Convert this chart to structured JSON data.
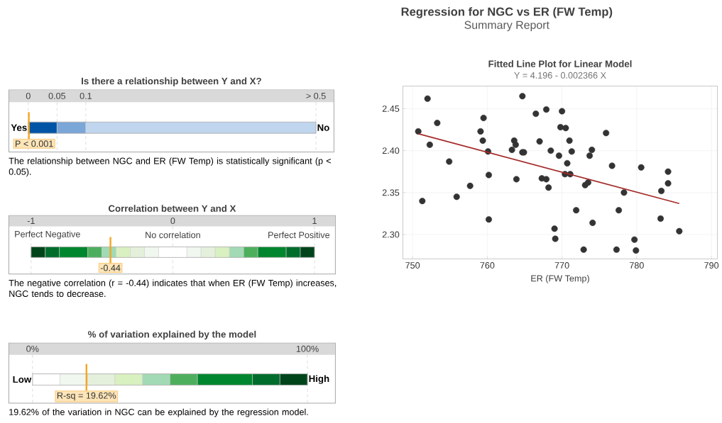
{
  "chart_data": [
    {
      "type": "other",
      "title": "Regression for NGC vs ER (FW Temp)",
      "subtitle": "Summary Report"
    },
    {
      "type": "bar",
      "orientation": "horizontal",
      "title": "Is there a relationship between Y and X?",
      "categories": [
        null
      ],
      "xlim": [
        0,
        0.5
      ],
      "xticks": [
        0,
        0.05,
        0.1,
        {
          "value": 0.5,
          "label": "> 0.5"
        }
      ],
      "series": [
        {
          "color": "#0054a6",
          "base": [
            0
          ],
          "values": [
            0.05
          ]
        },
        {
          "color": "#7aa6d8",
          "base": [
            0.05
          ],
          "values": [
            0.05
          ]
        },
        {
          "color": "#c0d5ee",
          "base": [
            0.1
          ],
          "values": [
            0.4
          ]
        }
      ],
      "ref_lines": [
        {
          "axis": "x",
          "value": 0.001,
          "label": "P < 0.001",
          "color": "#f5a623"
        }
      ],
      "annotations": [
        "Yes",
        "No",
        "The relationship between NGC and ER (FW Temp) is statistically significant (p < 0.05)."
      ]
    },
    {
      "type": "bar",
      "orientation": "horizontal",
      "title": "Correlation between Y and X",
      "categories": [
        null
      ],
      "xlim": [
        -1,
        1
      ],
      "xticks": [
        -1,
        0,
        1
      ],
      "series": [
        {
          "color": "#00441b",
          "base": [
            -1
          ],
          "values": [
            0.1
          ]
        },
        {
          "color": "#006d2c",
          "base": [
            -0.9
          ],
          "values": [
            0.1
          ]
        },
        {
          "color": "#00862e",
          "base": [
            -0.8
          ],
          "values": [
            0.2
          ]
        },
        {
          "color": "#4daf5e",
          "base": [
            -0.6
          ],
          "values": [
            0.1
          ]
        },
        {
          "color": "#a1dab4",
          "base": [
            -0.5
          ],
          "values": [
            0.1
          ]
        },
        {
          "color": "#d9f0c0",
          "base": [
            -0.4
          ],
          "values": [
            0.1
          ]
        },
        {
          "color": "#e5f0dc",
          "base": [
            -0.3
          ],
          "values": [
            0.1
          ]
        },
        {
          "color": "#f0f7ee",
          "base": [
            -0.2
          ],
          "values": [
            0.1
          ]
        },
        {
          "color": "#ffffff",
          "base": [
            -0.1
          ],
          "values": [
            0.2
          ]
        },
        {
          "color": "#f0f7ee",
          "base": [
            0.1
          ],
          "values": [
            0.1
          ]
        },
        {
          "color": "#e5f0dc",
          "base": [
            0.2
          ],
          "values": [
            0.1
          ]
        },
        {
          "color": "#d9f0c0",
          "base": [
            0.3
          ],
          "values": [
            0.1
          ]
        },
        {
          "color": "#a1dab4",
          "base": [
            0.4
          ],
          "values": [
            0.1
          ]
        },
        {
          "color": "#4daf5e",
          "base": [
            0.5
          ],
          "values": [
            0.1
          ]
        },
        {
          "color": "#00862e",
          "base": [
            0.6
          ],
          "values": [
            0.2
          ]
        },
        {
          "color": "#006d2c",
          "base": [
            0.8
          ],
          "values": [
            0.1
          ]
        },
        {
          "color": "#00441b",
          "base": [
            0.9
          ],
          "values": [
            0.1
          ]
        }
      ],
      "ref_lines": [
        {
          "axis": "x",
          "value": -0.44,
          "label": "-0.44",
          "color": "#f5a623"
        }
      ],
      "annotations": [
        "Perfect Negative",
        "No correlation",
        "Perfect Positive",
        "The negative correlation (r = -0.44) indicates that when ER (FW Temp) increases, NGC tends to decrease."
      ]
    },
    {
      "type": "bar",
      "orientation": "horizontal",
      "title": "% of variation explained by the model",
      "categories": [
        null
      ],
      "xlim": [
        0,
        100
      ],
      "xticks": [
        {
          "value": 0,
          "label": "0%"
        },
        {
          "value": 100,
          "label": "100%"
        }
      ],
      "series": [
        {
          "color": "#ffffff",
          "base": [
            0
          ],
          "values": [
            10
          ]
        },
        {
          "color": "#f0f7ee",
          "base": [
            10
          ],
          "values": [
            10
          ]
        },
        {
          "color": "#e5f0dc",
          "base": [
            20
          ],
          "values": [
            10
          ]
        },
        {
          "color": "#d9f0c0",
          "base": [
            30
          ],
          "values": [
            10
          ]
        },
        {
          "color": "#a1dab4",
          "base": [
            40
          ],
          "values": [
            10
          ]
        },
        {
          "color": "#4daf5e",
          "base": [
            50
          ],
          "values": [
            10
          ]
        },
        {
          "color": "#00862e",
          "base": [
            60
          ],
          "values": [
            20
          ]
        },
        {
          "color": "#006d2c",
          "base": [
            80
          ],
          "values": [
            10
          ]
        },
        {
          "color": "#00441b",
          "base": [
            90
          ],
          "values": [
            10
          ]
        }
      ],
      "ref_lines": [
        {
          "axis": "x",
          "value": 19.62,
          "label": "R-sq = 19.62%",
          "color": "#f5a623"
        }
      ],
      "annotations": [
        "Low",
        "High",
        "19.62% of the variation in NGC can be explained by the regression model."
      ]
    },
    {
      "type": "scatter",
      "title": "Fitted Line Plot for Linear Model",
      "subtitle": "Y = 4.196 - 0.002366 X",
      "xlabel": "ER (FW Temp)",
      "marker": "circle",
      "grid": true,
      "xlim": [
        748.7,
        790.8
      ],
      "ylim": [
        2.271,
        2.477
      ],
      "xticks": [
        750,
        760,
        770,
        780,
        790
      ],
      "yticks": [
        {
          "value": 2.3,
          "label": "2.30"
        },
        2.35,
        {
          "value": 2.4,
          "label": "2.40"
        },
        2.45
      ],
      "series": [
        {
          "type": "scatter",
          "color": "#333333",
          "x": [
            750.76,
            752.0,
            751.3,
            752.3,
            753.3,
            754.9,
            755.9,
            757.7,
            759.1,
            759.5,
            759.4,
            760.1,
            760.2,
            760.2,
            763.3,
            763.6,
            763.8,
            763.9,
            764.7,
            764.9,
            764.7,
            766.5,
            767.0,
            767.3,
            767.9,
            767.9,
            768.2,
            768.5,
            769.0,
            769.1,
            769.6,
            769.8,
            770.0,
            770.5,
            770.7,
            770.4,
            771.0,
            771.1,
            771.3,
            771.9,
            772.9,
            773.1,
            773.5,
            773.7,
            774.0,
            774.1,
            775.9,
            776.7,
            777.3,
            777.6,
            778.3,
            779.7,
            779.9,
            780.6,
            783.2,
            783.3,
            784.2,
            784.2,
            785.7
          ],
          "values": [
            2.423,
            2.462,
            2.34,
            2.407,
            2.433,
            2.387,
            2.345,
            2.358,
            2.423,
            2.439,
            2.412,
            2.399,
            2.371,
            2.318,
            2.401,
            2.412,
            2.407,
            2.366,
            2.398,
            2.398,
            2.465,
            2.444,
            2.411,
            2.367,
            2.449,
            2.366,
            2.356,
            2.4,
            2.307,
            2.295,
            2.394,
            2.428,
            2.447,
            2.427,
            2.385,
            2.372,
            2.412,
            2.372,
            2.399,
            2.329,
            2.282,
            2.359,
            2.362,
            2.394,
            2.401,
            2.314,
            2.421,
            2.382,
            2.282,
            2.329,
            2.35,
            2.294,
            2.281,
            2.38,
            2.319,
            2.352,
            2.375,
            2.361,
            2.304
          ]
        },
        {
          "type": "line",
          "color": "#a52a2a",
          "marker": "none",
          "x": [
            750.8,
            785.7
          ],
          "values": [
            2.42,
            2.337
          ]
        }
      ]
    }
  ]
}
